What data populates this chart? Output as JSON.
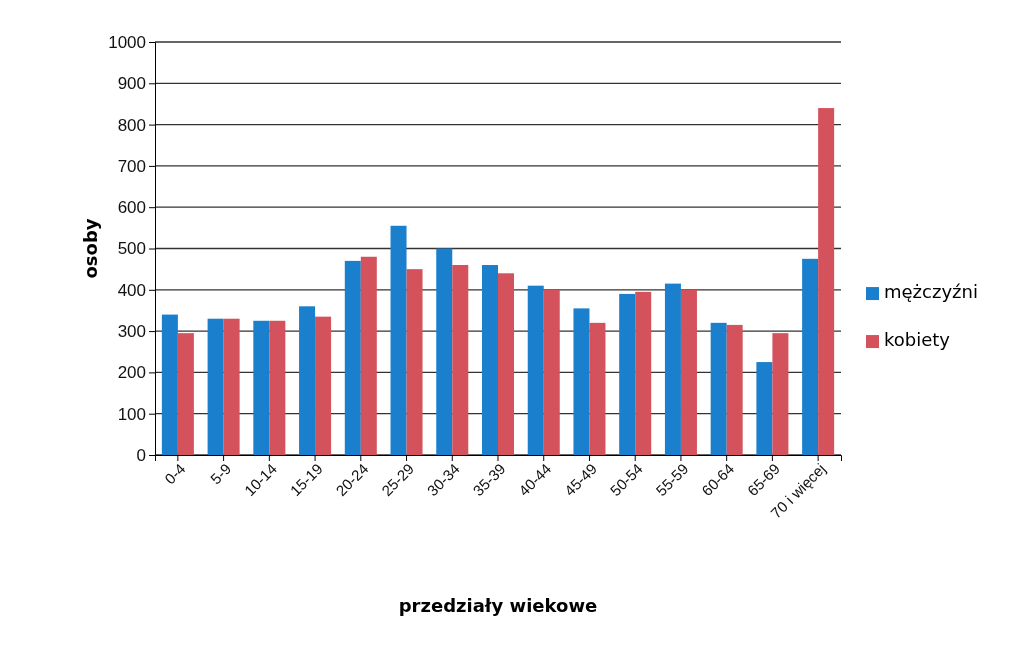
{
  "chart_data": {
    "type": "bar",
    "xlabel": "przedziały wiekowe",
    "ylabel": "osoby",
    "categories": [
      "0-4",
      "5-9",
      "10-14",
      "15-19",
      "20-24",
      "25-29",
      "30-34",
      "35-39",
      "40-44",
      "45-49",
      "50-54",
      "55-59",
      "60-64",
      "65-69",
      "70 i więcej"
    ],
    "series": [
      {
        "name": "mężczyźni",
        "color": "#1a7fcc",
        "values": [
          340,
          330,
          325,
          360,
          470,
          555,
          500,
          460,
          410,
          355,
          390,
          415,
          320,
          225,
          475
        ]
      },
      {
        "name": "kobiety",
        "color": "#d4525c",
        "values": [
          295,
          330,
          325,
          335,
          480,
          450,
          460,
          440,
          400,
          320,
          395,
          400,
          315,
          295,
          840
        ]
      }
    ],
    "ylim": [
      0,
      1000
    ],
    "yticks": [
      0,
      100,
      200,
      300,
      400,
      500,
      600,
      700,
      800,
      900,
      1000
    ],
    "grid": "y",
    "legend": "right"
  }
}
